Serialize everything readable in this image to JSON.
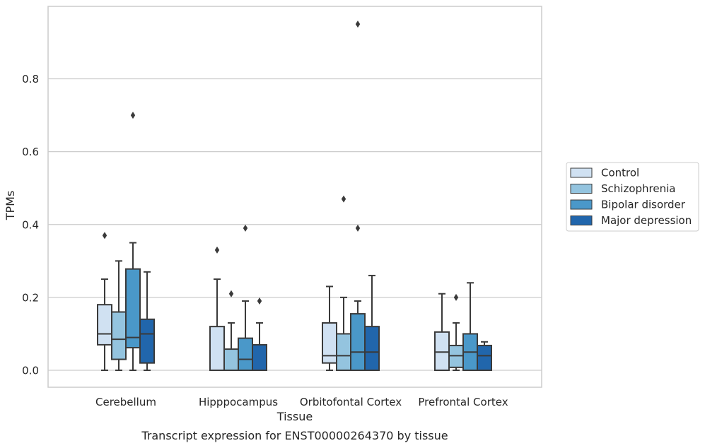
{
  "caption": "Transcript expression for ENST00000264370 by tissue",
  "chart_data": {
    "type": "boxplot",
    "xlabel": "Tissue",
    "ylabel": "TPMs",
    "ylim": [
      -0.045,
      0.99
    ],
    "yticks": [
      "0.0",
      "0.2",
      "0.4",
      "0.6",
      "0.8"
    ],
    "grid": true,
    "legend_position": "right",
    "categories": [
      "Cerebellum",
      "Hipppocampus",
      "Orbitofontal Cortex",
      "Prefrontal Cortex"
    ],
    "series": [
      {
        "name": "Control",
        "color": "#d0e1f2",
        "boxes": [
          {
            "whislo": 0.0,
            "q1": 0.07,
            "med": 0.1,
            "q3": 0.18,
            "whishi": 0.25,
            "fliers": [
              0.37
            ]
          },
          {
            "whislo": 0.0,
            "q1": 0.0,
            "med": 0.0,
            "q3": 0.12,
            "whishi": 0.25,
            "fliers": [
              0.33
            ]
          },
          {
            "whislo": 0.0,
            "q1": 0.02,
            "med": 0.04,
            "q3": 0.13,
            "whishi": 0.23,
            "fliers": []
          },
          {
            "whislo": 0.0,
            "q1": 0.0,
            "med": 0.05,
            "q3": 0.105,
            "whishi": 0.21,
            "fliers": []
          }
        ]
      },
      {
        "name": "Schizophrenia",
        "color": "#94c4df",
        "boxes": [
          {
            "whislo": 0.0,
            "q1": 0.03,
            "med": 0.085,
            "q3": 0.16,
            "whishi": 0.3,
            "fliers": []
          },
          {
            "whislo": 0.0,
            "q1": 0.0,
            "med": 0.0,
            "q3": 0.058,
            "whishi": 0.13,
            "fliers": [
              0.21
            ]
          },
          {
            "whislo": 0.0,
            "q1": 0.0,
            "med": 0.04,
            "q3": 0.1,
            "whishi": 0.2,
            "fliers": [
              0.47
            ]
          },
          {
            "whislo": 0.0,
            "q1": 0.008,
            "med": 0.04,
            "q3": 0.068,
            "whishi": 0.13,
            "fliers": [
              0.2
            ]
          }
        ]
      },
      {
        "name": "Bipolar disorder",
        "color": "#4a98c9",
        "boxes": [
          {
            "whislo": 0.0,
            "q1": 0.062,
            "med": 0.09,
            "q3": 0.278,
            "whishi": 0.35,
            "fliers": [
              0.7
            ]
          },
          {
            "whislo": 0.0,
            "q1": 0.0,
            "med": 0.03,
            "q3": 0.088,
            "whishi": 0.19,
            "fliers": [
              0.39
            ]
          },
          {
            "whislo": 0.0,
            "q1": 0.0,
            "med": 0.05,
            "q3": 0.155,
            "whishi": 0.19,
            "fliers": [
              0.39,
              0.95
            ]
          },
          {
            "whislo": 0.0,
            "q1": 0.0,
            "med": 0.05,
            "q3": 0.1,
            "whishi": 0.24,
            "fliers": []
          }
        ]
      },
      {
        "name": "Major depression",
        "color": "#2166ac",
        "boxes": [
          {
            "whislo": 0.0,
            "q1": 0.02,
            "med": 0.1,
            "q3": 0.14,
            "whishi": 0.27,
            "fliers": []
          },
          {
            "whislo": 0.0,
            "q1": 0.0,
            "med": 0.0,
            "q3": 0.07,
            "whishi": 0.13,
            "fliers": [
              0.19
            ]
          },
          {
            "whislo": 0.0,
            "q1": 0.0,
            "med": 0.05,
            "q3": 0.12,
            "whishi": 0.26,
            "fliers": []
          },
          {
            "whislo": 0.0,
            "q1": 0.0,
            "med": 0.04,
            "q3": 0.068,
            "whishi": 0.078,
            "fliers": []
          }
        ]
      }
    ]
  }
}
